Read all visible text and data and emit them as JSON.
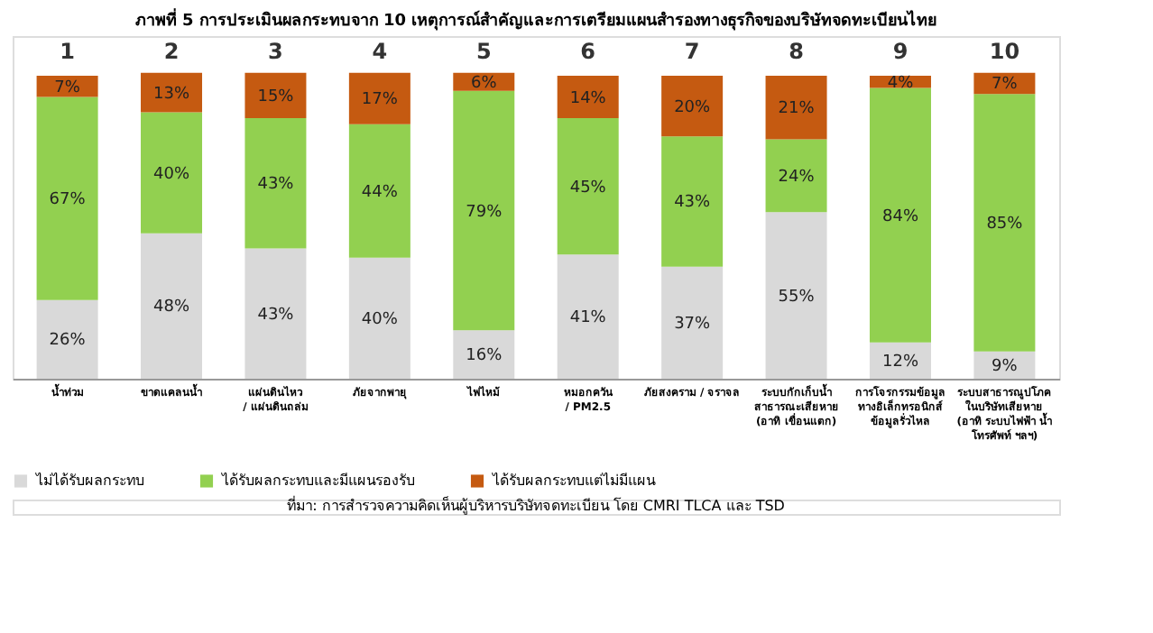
{
  "chart_data": {
    "type": "bar",
    "stacked": true,
    "legend": "bottom",
    "tick_labels": "x",
    "grid": false,
    "title": "ภาพที่ 5 การประเมินผลกระทบจาก 10 เหตุการณ์สำคัญและการเตรียมแผนสำรองทางธุรกิจของบริษัทจดทะเบียนไทย",
    "categories": [
      "น้ำท่วม",
      "ขาดแคลนน้ำ",
      "แผ่นดินไหว\n/ แผ่นดินถล่ม",
      "ภัยจากพายุ",
      "ไฟไหม้",
      "หมอกควัน\n/ PM2.5",
      "ภัยสงคราม / จราจล",
      "ระบบกักเก็บน้ำ\nสาธารณะเสียหาย\n(อาทิ เขื่อนแตก)",
      "การโจรกรรมข้อมูล\nทางอิเล็กทรอนิกส์\nข้อมูลรั่วไหล",
      "ระบบสาธารณูปโภค\nในบริษัทเสียหาย\n(อาทิ ระบบไฟฟ้า น้ำ\nโทรศัพท์ ฯลฯ)"
    ],
    "series": [
      {
        "name": "ไม่ได้รับผลกระทบ",
        "color": "#d9d9d9",
        "values": [
          26,
          48,
          43,
          40,
          16,
          41,
          37,
          55,
          12,
          9
        ],
        "value_labels": [
          "26%",
          "48%",
          "43%",
          "40%",
          "16%",
          "41%",
          "37%",
          "55%",
          "12%",
          "9%"
        ]
      },
      {
        "name": "ได้รับผลกระทบและมีแผนรองรับ",
        "color": "#92d050",
        "values": [
          67,
          40,
          43,
          44,
          79,
          45,
          43,
          24,
          84,
          85
        ],
        "value_labels": [
          "67%",
          "40%",
          "43%",
          "44%",
          "79%",
          "45%",
          "43%",
          "24%",
          "84%",
          "85%"
        ]
      },
      {
        "name": "ได้รับผลกระทบแต่ไม่มีแผน",
        "color": "#c55a11",
        "values": [
          7,
          13,
          15,
          17,
          6,
          14,
          20,
          21,
          4,
          7
        ],
        "value_labels": [
          "7%",
          "13%",
          "15%",
          "17%",
          "6%",
          "14%",
          "20%",
          "21%",
          "4%",
          "7%"
        ]
      }
    ],
    "annotations": [
      "1",
      "2",
      "3",
      "4",
      "5",
      "6",
      "7",
      "8",
      "9",
      "10",
      "ที่มา: การสำรวจความคิดเห็นผู้บริหารบริษัทจดทะเบียน โดย CMRI TLCA และ TSD"
    ]
  }
}
